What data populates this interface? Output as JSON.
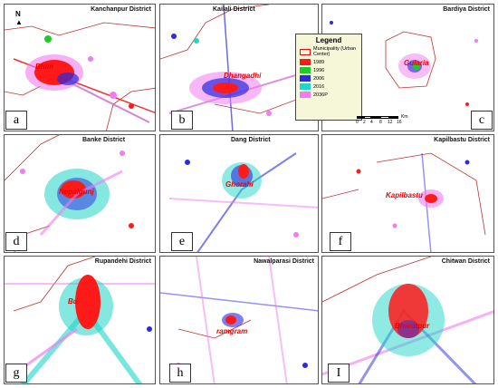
{
  "panels": [
    {
      "id": "a",
      "title": "Kanchanpur District",
      "city": "Bhim"
    },
    {
      "id": "b",
      "title": "Kailali District",
      "city": "Dhangadhi"
    },
    {
      "id": "c",
      "title": "Bardiya District",
      "city": "Gularia"
    },
    {
      "id": "d",
      "title": "Banke District",
      "city": "Nepalgunj"
    },
    {
      "id": "e",
      "title": "Dang District",
      "city": "Ghorahi"
    },
    {
      "id": "f",
      "title": "Kapilbastu District",
      "city": "Kapilbastu"
    },
    {
      "id": "g",
      "title": "Rupandehi District",
      "city": "Bu"
    },
    {
      "id": "h",
      "title": "Nawalparasi District",
      "city": "ramgram"
    },
    {
      "id": "i",
      "title": "Chitwan District",
      "city": "Bharatpur"
    }
  ],
  "letters": [
    "a",
    "b",
    "c",
    "d",
    "e",
    "f",
    "g",
    "h",
    "I"
  ],
  "legend": {
    "title": "Legend",
    "municipality": "Municipality (Urban Center)",
    "items": [
      {
        "label": "1989",
        "color": "#ff1a1a"
      },
      {
        "label": "1996",
        "color": "#1ecb2a"
      },
      {
        "label": "2006",
        "color": "#2a2ae0"
      },
      {
        "label": "2016",
        "color": "#1fd6c8"
      },
      {
        "label": "2036P",
        "color": "#f07cf0"
      }
    ]
  },
  "scale": {
    "labels": [
      "0",
      "2",
      "4",
      "8",
      "12",
      "16"
    ],
    "unit": "Km"
  },
  "north": "N"
}
